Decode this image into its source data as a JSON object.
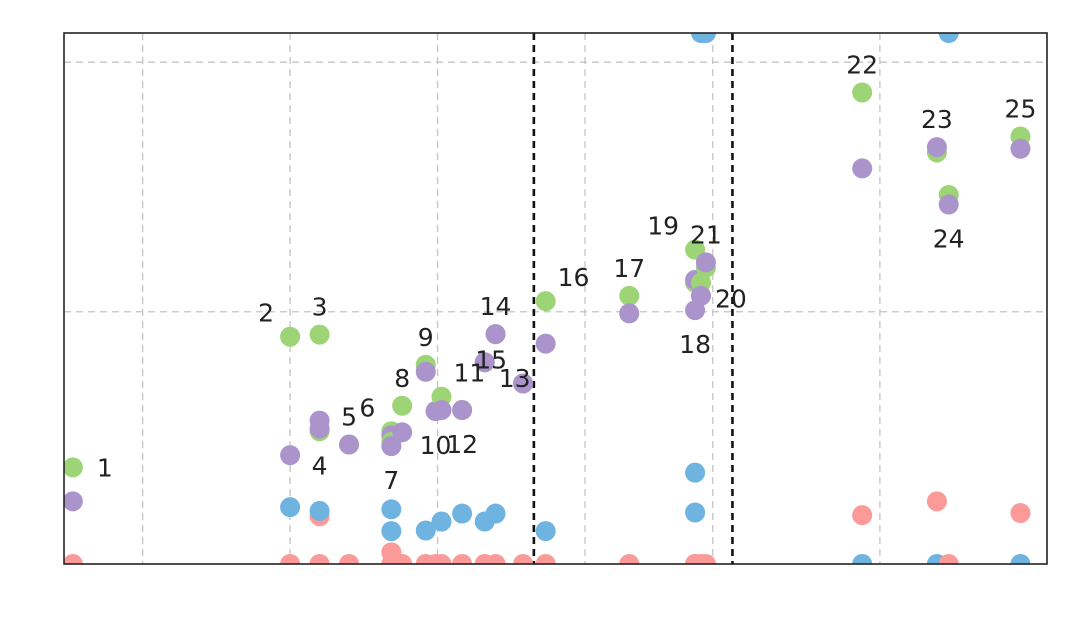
{
  "chart_data": {
    "type": "scatter",
    "xlim": [
      0,
      1000
    ],
    "ylim": [
      0,
      1000
    ],
    "grid": true,
    "x_gridlines": [
      80,
      230,
      380,
      530,
      660,
      830
    ],
    "y_gridlines": [
      475,
      945
    ],
    "vertical_dashed_lines": [
      478,
      680
    ],
    "colors": {
      "green": "#9dd476",
      "purple": "#ab94cc",
      "blue": "#6fb3e0",
      "pink": "#fc9999"
    },
    "groups": [
      {
        "label": "1",
        "x": 9,
        "green": 182,
        "purple": 118,
        "blue": null,
        "pink": 0,
        "label_pos": "right"
      },
      {
        "label": "2",
        "x": 230,
        "green": 428,
        "purple": 205,
        "blue": 107,
        "pink": 0,
        "label_pos": "upper-left"
      },
      {
        "label": "3",
        "x": 260,
        "green": 432,
        "purple": 270,
        "blue": 100,
        "pink": 90,
        "label_pos": "above"
      },
      {
        "label": "4",
        "x": 260,
        "green": 250,
        "purple": 255,
        "blue": null,
        "pink": 0,
        "label_pos": "below"
      },
      {
        "label": "5",
        "x": 290,
        "green": 225,
        "purple": 225,
        "blue": null,
        "pink": 0,
        "label_pos": "above"
      },
      {
        "label": "6",
        "x": 333,
        "green": 250,
        "purple": 242,
        "blue": 103,
        "pink": 22,
        "label_pos": "upper-left"
      },
      {
        "label": "7",
        "x": 333,
        "green": 230,
        "purple": 222,
        "blue": 62,
        "pink": 0,
        "label_pos": "below"
      },
      {
        "label": "8",
        "x": 344,
        "green": 298,
        "purple": 248,
        "blue": null,
        "pink": 0,
        "label_pos": "above"
      },
      {
        "label": "9",
        "x": 368,
        "green": 375,
        "purple": 362,
        "blue": 63,
        "pink": 0,
        "label_pos": "above"
      },
      {
        "label": "10",
        "x": 378,
        "green": 288,
        "purple": 288,
        "blue": null,
        "pink": 0,
        "label_pos": "below"
      },
      {
        "label": "11",
        "x": 384,
        "green": 315,
        "purple": 290,
        "blue": 80,
        "pink": 0,
        "label_pos": "upper-right"
      },
      {
        "label": "12",
        "x": 405,
        "green": 290,
        "purple": 290,
        "blue": 95,
        "pink": 0,
        "label_pos": "below"
      },
      {
        "label": "13",
        "x": 428,
        "green": 380,
        "purple": 380,
        "blue": 80,
        "pink": 0,
        "label_pos": "lower-right"
      },
      {
        "label": "14",
        "x": 439,
        "green": 433,
        "purple": 433,
        "blue": 95,
        "pink": 0,
        "label_pos": "above"
      },
      {
        "label": "15",
        "x": 467,
        "green": 340,
        "purple": 340,
        "blue": null,
        "pink": 0,
        "label_pos": "upper-left"
      },
      {
        "label": "16",
        "x": 490,
        "green": 495,
        "purple": 415,
        "blue": 62,
        "pink": 0,
        "label_pos": "upper-right"
      },
      {
        "label": "17",
        "x": 575,
        "green": 505,
        "purple": 472,
        "blue": null,
        "pink": 0,
        "label_pos": "above"
      },
      {
        "label": "18",
        "x": 642,
        "green": 530,
        "purple": 478,
        "blue": 172,
        "pink": 0,
        "label_pos": "below"
      },
      {
        "label": "19",
        "x": 642,
        "green": 592,
        "purple": 535,
        "blue": 97,
        "pink": 0,
        "label_pos": "upper-left"
      },
      {
        "label": "20",
        "x": 648,
        "green": 530,
        "purple": 505,
        "blue": 1000,
        "pink": 0,
        "label_pos": "lower-right"
      },
      {
        "label": "21",
        "x": 653,
        "green": 558,
        "purple": 568,
        "blue": 1000,
        "pink": 0,
        "label_pos": "above"
      },
      {
        "label": "22",
        "x": 812,
        "green": 888,
        "purple": 745,
        "blue": 0,
        "pink": 92,
        "label_pos": "above"
      },
      {
        "label": "23",
        "x": 888,
        "green": 775,
        "purple": 785,
        "blue": 0,
        "pink": 118,
        "label_pos": "above"
      },
      {
        "label": "24",
        "x": 900,
        "green": 695,
        "purple": 677,
        "blue": 1000,
        "pink": 0,
        "label_pos": "below"
      },
      {
        "label": "25",
        "x": 973,
        "green": 805,
        "purple": 782,
        "blue": 0,
        "pink": 96,
        "label_pos": "above"
      }
    ]
  }
}
